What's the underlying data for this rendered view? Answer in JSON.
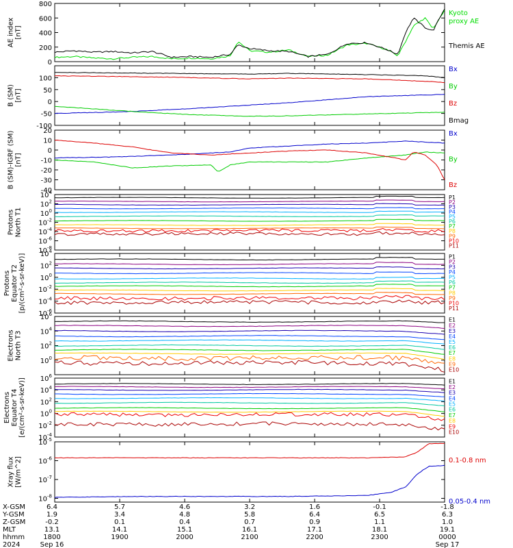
{
  "date_year": "2024",
  "chart_data": [
    {
      "type": "line",
      "ylabel_lines": [
        "AE index",
        "[nT]"
      ],
      "ylim": [
        0,
        800
      ],
      "yticks": [
        0,
        200,
        400,
        600,
        800
      ],
      "scale": "linear",
      "series": [
        {
          "name": "Kyoto proxy AE",
          "name_lines": [
            "Kyoto",
            "proxy AE"
          ],
          "color": "#00dd00",
          "x": [
            0,
            0.05,
            0.1,
            0.15,
            0.2,
            0.25,
            0.3,
            0.35,
            0.4,
            0.45,
            0.47,
            0.5,
            0.55,
            0.6,
            0.65,
            0.7,
            0.75,
            0.8,
            0.85,
            0.88,
            0.9,
            0.92,
            0.95,
            0.97,
            1
          ],
          "y": [
            60,
            70,
            50,
            40,
            60,
            70,
            40,
            50,
            40,
            80,
            280,
            150,
            130,
            160,
            70,
            90,
            230,
            250,
            170,
            80,
            280,
            490,
            600,
            450,
            700
          ]
        },
        {
          "name": "Themis AE",
          "name_lines": [
            "Themis AE"
          ],
          "color": "#000000",
          "x": [
            0,
            0.05,
            0.1,
            0.15,
            0.2,
            0.25,
            0.3,
            0.35,
            0.4,
            0.45,
            0.47,
            0.5,
            0.55,
            0.6,
            0.65,
            0.7,
            0.75,
            0.8,
            0.85,
            0.88,
            0.9,
            0.92,
            0.95,
            0.97,
            1
          ],
          "y": [
            130,
            150,
            130,
            140,
            120,
            140,
            60,
            70,
            60,
            100,
            230,
            180,
            150,
            140,
            70,
            100,
            250,
            260,
            170,
            100,
            400,
            600,
            470,
            420,
            730
          ]
        }
      ]
    },
    {
      "type": "line",
      "ylabel_lines": [
        "B (SM)",
        "[nT]"
      ],
      "ylim": [
        -100,
        150
      ],
      "yticks": [
        -100,
        -50,
        0,
        50,
        100
      ],
      "scale": "linear",
      "series": [
        {
          "name": "Bx",
          "color": "#0000cc",
          "x": [
            0,
            0.2,
            0.4,
            0.6,
            0.8,
            1
          ],
          "y": [
            -50,
            -42,
            -25,
            -5,
            20,
            30
          ]
        },
        {
          "name": "By",
          "color": "#00cc00",
          "x": [
            0,
            0.2,
            0.35,
            0.5,
            0.6,
            0.8,
            1
          ],
          "y": [
            -20,
            -42,
            -55,
            -62,
            -60,
            -52,
            -45
          ]
        },
        {
          "name": "Bz",
          "color": "#dd0000",
          "x": [
            0,
            0.3,
            0.5,
            0.6,
            0.8,
            0.95,
            1
          ],
          "y": [
            108,
            102,
            95,
            98,
            95,
            85,
            80
          ]
        },
        {
          "name": "Bmag",
          "color": "#000000",
          "x": [
            0,
            0.3,
            0.5,
            0.6,
            0.8,
            0.95,
            1
          ],
          "y": [
            122,
            118,
            115,
            118,
            113,
            108,
            100
          ]
        }
      ]
    },
    {
      "type": "line",
      "ylabel_lines": [
        "B (SM)-IGRF (SM)",
        "[nT]"
      ],
      "ylim": [
        -40,
        20
      ],
      "yticks": [
        -40,
        -30,
        -20,
        -10,
        0,
        10,
        20
      ],
      "scale": "linear",
      "series": [
        {
          "name": "Bx",
          "color": "#0000cc",
          "x": [
            0,
            0.15,
            0.3,
            0.45,
            0.5,
            0.6,
            0.7,
            0.8,
            0.9,
            0.95,
            1
          ],
          "y": [
            -8,
            -7,
            -5,
            -2,
            2,
            4,
            6,
            7,
            9,
            8,
            7
          ]
        },
        {
          "name": "By",
          "color": "#00cc00",
          "x": [
            0,
            0.1,
            0.2,
            0.3,
            0.4,
            0.42,
            0.45,
            0.5,
            0.7,
            0.8,
            0.9,
            0.95,
            1
          ],
          "y": [
            -10,
            -12,
            -18,
            -16,
            -15,
            -22,
            -15,
            -12,
            -12,
            -8,
            -5,
            -2,
            -3
          ]
        },
        {
          "name": "Bz",
          "color": "#dd0000",
          "x": [
            0,
            0.1,
            0.2,
            0.3,
            0.4,
            0.5,
            0.6,
            0.7,
            0.8,
            0.9,
            0.92,
            0.95,
            0.98,
            1
          ],
          "y": [
            10,
            7,
            3,
            -3,
            -5,
            -3,
            -1,
            0,
            -3,
            -10,
            -2,
            -5,
            -15,
            -30
          ]
        }
      ]
    },
    {
      "type": "line",
      "ylabel_lines": [
        "Protons",
        "North T1"
      ],
      "ylim": [
        -8,
        4
      ],
      "yticks": [
        -8,
        -6,
        -4,
        -2,
        0,
        2,
        4
      ],
      "scale": "log10",
      "series": [
        {
          "name": "P1",
          "color": "#000000",
          "level": 3.3
        },
        {
          "name": "P2",
          "color": "#8b0080",
          "level": 2.5
        },
        {
          "name": "P3",
          "color": "#1a00b0",
          "level": 1.8
        },
        {
          "name": "P4",
          "color": "#0044ff",
          "level": 1.0
        },
        {
          "name": "P5",
          "color": "#00b0ff",
          "level": 0.2
        },
        {
          "name": "P6",
          "color": "#00c8a0",
          "level": -0.7
        },
        {
          "name": "P7",
          "color": "#00cc00",
          "level": -1.7
        },
        {
          "name": "P8",
          "color": "#ffcc00",
          "level": -2.6
        },
        {
          "name": "P9",
          "color": "#ff6600",
          "level": -3.3
        },
        {
          "name": "P10",
          "color": "#ee0000",
          "level": -3.8
        },
        {
          "name": "P11",
          "color": "#aa0000",
          "level": -4.5
        }
      ]
    },
    {
      "type": "line",
      "ylabel_lines": [
        "Protons",
        "Equator T2",
        "[p/(cm²-s-sr-keV)]"
      ],
      "ylim": [
        -6,
        4
      ],
      "yticks": [
        -6,
        -4,
        -2,
        0,
        2,
        4
      ],
      "scale": "log10",
      "series": [
        {
          "name": "P1",
          "color": "#000000",
          "level": 3.0
        },
        {
          "name": "P2",
          "color": "#8b0080",
          "level": 2.2
        },
        {
          "name": "P3",
          "color": "#1a00b0",
          "level": 1.5
        },
        {
          "name": "P4",
          "color": "#0044ff",
          "level": 0.7
        },
        {
          "name": "P5",
          "color": "#00b0ff",
          "level": -0.2
        },
        {
          "name": "P6",
          "color": "#00c8a0",
          "level": -0.9
        },
        {
          "name": "P7",
          "color": "#00cc00",
          "level": -1.5
        },
        {
          "name": "P8",
          "color": "#ffcc00",
          "level": -2.2
        },
        {
          "name": "P9",
          "color": "#ff6600",
          "level": -2.8
        },
        {
          "name": "P10",
          "color": "#ee0000",
          "level": -3.5
        },
        {
          "name": "P11",
          "color": "#aa0000",
          "level": -4.2
        }
      ]
    },
    {
      "type": "line",
      "ylabel_lines": [
        "Electrons",
        "North T3"
      ],
      "ylim": [
        -2,
        6
      ],
      "yticks": [
        0,
        2,
        4,
        6
      ],
      "scale": "log10",
      "series": [
        {
          "name": "E1",
          "color": "#000000",
          "level": 5.3
        },
        {
          "name": "E2",
          "color": "#8b0080",
          "level": 4.7
        },
        {
          "name": "E3",
          "color": "#1a00b0",
          "level": 4.0
        },
        {
          "name": "E4",
          "color": "#0044ff",
          "level": 3.3
        },
        {
          "name": "E5",
          "color": "#00b0ff",
          "level": 2.7
        },
        {
          "name": "E6",
          "color": "#00c8a0",
          "level": 2.0
        },
        {
          "name": "E7",
          "color": "#00cc00",
          "level": 1.4
        },
        {
          "name": "E8",
          "color": "#ffcc00",
          "level": 0.9
        },
        {
          "name": "E9",
          "color": "#ff6600",
          "level": 0.3
        },
        {
          "name": "E10",
          "color": "#aa0000",
          "level": -0.4
        }
      ]
    },
    {
      "type": "line",
      "ylabel_lines": [
        "Electrons",
        "Equator T4",
        "[e/(cm²-s-sr-keV)]"
      ],
      "ylim": [
        -4,
        6
      ],
      "yticks": [
        -4,
        -2,
        0,
        2,
        4,
        6
      ],
      "scale": "log10",
      "series": [
        {
          "name": "E1",
          "color": "#000000",
          "level": 5.0
        },
        {
          "name": "E2",
          "color": "#8b0080",
          "level": 4.5
        },
        {
          "name": "E3",
          "color": "#1a00b0",
          "level": 4.0
        },
        {
          "name": "E4",
          "color": "#0044ff",
          "level": 3.3
        },
        {
          "name": "E5",
          "color": "#00b0ff",
          "level": 2.6
        },
        {
          "name": "E6",
          "color": "#00c8a0",
          "level": 1.8
        },
        {
          "name": "E7",
          "color": "#00cc00",
          "level": 0.9
        },
        {
          "name": "E8",
          "color": "#ffcc00",
          "level": 0.3
        },
        {
          "name": "E9",
          "color": "#ee0000",
          "level": -0.2
        },
        {
          "name": "E10",
          "color": "#aa0000",
          "level": -1.8
        }
      ]
    },
    {
      "type": "line",
      "ylabel_lines": [
        "Xray flux",
        "[W/m^2]"
      ],
      "ylim": [
        -8.2,
        -5.0
      ],
      "yticks": [
        -8,
        -7,
        -6,
        -5
      ],
      "scale": "log10",
      "series": [
        {
          "name": "0.1-0.8 nm",
          "color": "#dd0000",
          "x": [
            0,
            0.2,
            0.4,
            0.6,
            0.8,
            0.9,
            0.93,
            0.96,
            1
          ],
          "y": [
            -5.85,
            -5.85,
            -5.85,
            -5.85,
            -5.85,
            -5.8,
            -5.55,
            -5.1,
            -5.08
          ]
        },
        {
          "name": "0.05-0.4 nm",
          "color": "#0000cc",
          "x": [
            0,
            0.2,
            0.4,
            0.6,
            0.8,
            0.86,
            0.9,
            0.93,
            0.96,
            1
          ],
          "y": [
            -7.95,
            -7.9,
            -7.9,
            -7.9,
            -7.85,
            -7.7,
            -7.4,
            -6.7,
            -6.3,
            -6.25
          ]
        }
      ]
    }
  ],
  "bottom_axis": {
    "row_labels": [
      "X-GSM",
      "Y-GSM",
      "Z-GSM",
      "MLT",
      "hhmm",
      "2024"
    ],
    "columns": [
      [
        "6.4",
        "1.9",
        "-0.2",
        "13.1",
        "1800",
        "Sep 16"
      ],
      [
        "5.7",
        "3.4",
        "0.1",
        "14.1",
        "1900",
        ""
      ],
      [
        "4.6",
        "4.8",
        "0.4",
        "15.1",
        "2000",
        ""
      ],
      [
        "3.2",
        "5.8",
        "0.7",
        "16.1",
        "2100",
        ""
      ],
      [
        "1.6",
        "6.4",
        "0.9",
        "17.1",
        "2200",
        ""
      ],
      [
        "-0.1",
        "6.5",
        "1.1",
        "18.1",
        "2300",
        ""
      ],
      [
        "-1.8",
        "6.3",
        "1.0",
        "19.1",
        "0000",
        "Sep 17"
      ]
    ]
  }
}
